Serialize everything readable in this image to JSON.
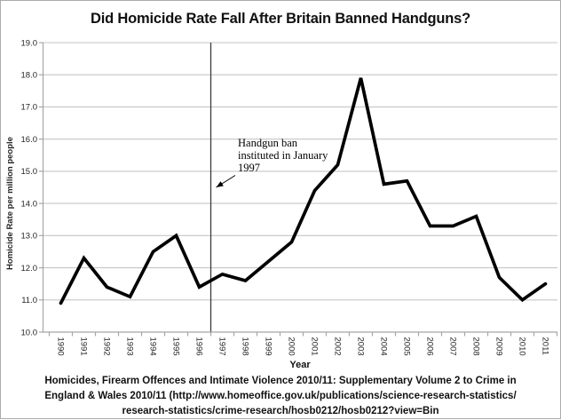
{
  "chart_data": {
    "type": "line",
    "title": "Did Homicide Rate Fall After Britain Banned Handguns?",
    "xlabel": "Year",
    "ylabel": "Homicide Rate per million people",
    "ylim": [
      10.0,
      19.0
    ],
    "ytick_labels": [
      "10.0",
      "11.0",
      "12.0",
      "13.0",
      "14.0",
      "15.0",
      "16.0",
      "17.0",
      "18.0",
      "19.0"
    ],
    "grid": true,
    "legend": "none",
    "categories": [
      "1990",
      "1991",
      "1992",
      "1993",
      "1994",
      "1995",
      "1996",
      "1997",
      "1998",
      "1999",
      "2000",
      "2001",
      "2002",
      "2003",
      "2004",
      "2005",
      "2006",
      "2007",
      "2008",
      "2009",
      "2010",
      "2011"
    ],
    "values": [
      10.9,
      12.3,
      11.4,
      11.1,
      12.5,
      13.0,
      11.4,
      11.8,
      11.6,
      12.2,
      12.8,
      14.4,
      15.2,
      17.9,
      14.6,
      14.7,
      13.3,
      13.3,
      13.6,
      11.7,
      11.0,
      11.5
    ],
    "ban_line": {
      "between_categories": [
        "1996",
        "1997"
      ]
    },
    "annotation": {
      "lines": [
        "Handgun ban",
        "instituted in January",
        "1997"
      ]
    },
    "colors": {
      "line": "#000000",
      "grid": "#c6c6c6",
      "axis": "#a6a6a6",
      "ban_line": "#3a3a3a",
      "tick_text": "#262626",
      "title_text": "#111111"
    }
  },
  "footer": {
    "lines": [
      "Homicides, Firearm Offences and Intimate Violence 2010/11: Supplementary Volume 2 to Crime in",
      "England & Wales 2010/11 (http://www.homeoffice.gov.uk/publications/science-research-statistics/",
      "research-statistics/crime-research/hosb0212/hosb0212?view=Bin"
    ]
  }
}
